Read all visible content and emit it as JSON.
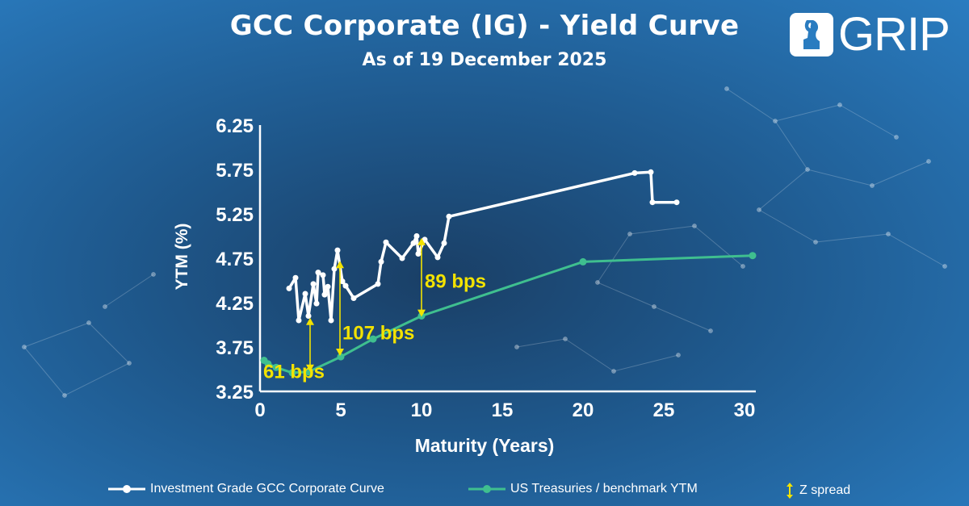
{
  "colors": {
    "corporate_line": "#ffffff",
    "treasury_line": "#3fbf8f",
    "spread_arrow": "#f2e200",
    "spread_label": "#f2e200"
  },
  "logo": {
    "text": "GRIP",
    "icon": "torch-head-icon"
  },
  "chart_data": {
    "type": "line",
    "title": "GCC Corporate (IG) - Yield Curve",
    "subtitle": "As of 19 December 2025",
    "xlabel": "Maturity (Years)",
    "ylabel": "YTM (%)",
    "xlim": [
      0,
      30.5
    ],
    "ylim": [
      3.25,
      6.25
    ],
    "x_ticks": [
      0,
      5,
      10,
      15,
      20,
      25,
      30
    ],
    "y_ticks": [
      3.25,
      3.75,
      4.25,
      4.75,
      5.25,
      5.75,
      6.25
    ],
    "y_tick_labels": [
      "3.25",
      "3.75",
      "4.25",
      "4.75",
      "5.25",
      "5.75",
      "6.25"
    ],
    "grid": false,
    "series": [
      {
        "name": "Investment Grade GCC Corporate Curve",
        "color_key": "corporate_line",
        "points": [
          [
            1.8,
            4.41
          ],
          [
            2.2,
            4.53
          ],
          [
            2.4,
            4.05
          ],
          [
            2.8,
            4.35
          ],
          [
            3.0,
            4.1
          ],
          [
            3.3,
            4.46
          ],
          [
            3.5,
            4.24
          ],
          [
            3.6,
            4.59
          ],
          [
            3.9,
            4.56
          ],
          [
            4.0,
            4.34
          ],
          [
            4.2,
            4.43
          ],
          [
            4.4,
            4.05
          ],
          [
            4.6,
            4.63
          ],
          [
            4.8,
            4.84
          ],
          [
            5.1,
            4.49
          ],
          [
            5.3,
            4.44
          ],
          [
            5.8,
            4.3
          ],
          [
            7.3,
            4.46
          ],
          [
            7.5,
            4.71
          ],
          [
            7.8,
            4.93
          ],
          [
            8.8,
            4.75
          ],
          [
            9.5,
            4.92
          ],
          [
            9.7,
            5.0
          ],
          [
            9.8,
            4.8
          ],
          [
            10.2,
            4.96
          ],
          [
            11.0,
            4.76
          ],
          [
            11.4,
            4.92
          ],
          [
            11.7,
            5.22
          ],
          [
            23.2,
            5.71
          ],
          [
            24.2,
            5.72
          ],
          [
            24.3,
            5.38
          ],
          [
            25.8,
            5.38
          ]
        ]
      },
      {
        "name": "US Treasuries / benchmark YTM",
        "color_key": "treasury_line",
        "points": [
          [
            0.25,
            3.6
          ],
          [
            0.5,
            3.56
          ],
          [
            1.0,
            3.52
          ],
          [
            2.0,
            3.46
          ],
          [
            3.0,
            3.47
          ],
          [
            5.0,
            3.64
          ],
          [
            7.0,
            3.84
          ],
          [
            10.0,
            4.1
          ],
          [
            20.0,
            4.71
          ],
          [
            30.5,
            4.78
          ]
        ]
      }
    ],
    "annotations": [
      {
        "label": "61 bps",
        "x": 3.1,
        "y_low": 3.47,
        "y_high": 4.08,
        "label_x": 0.2,
        "label_y": 3.48
      },
      {
        "label": "107 bps",
        "x": 4.95,
        "y_low": 3.65,
        "y_high": 4.72,
        "label_x": 5.1,
        "label_y": 3.92
      },
      {
        "label": "89 bps",
        "x": 10.0,
        "y_low": 4.09,
        "y_high": 4.98,
        "label_x": 10.2,
        "label_y": 4.5
      }
    ],
    "legend": {
      "position": "bottom",
      "items": [
        {
          "label": "Investment Grade GCC Corporate Curve",
          "marker": "line-dot-white"
        },
        {
          "label": "US Treasuries / benchmark YTM",
          "marker": "line-dot-green"
        },
        {
          "label": "Z spread",
          "marker": "double-arrow-yellow"
        }
      ]
    }
  }
}
